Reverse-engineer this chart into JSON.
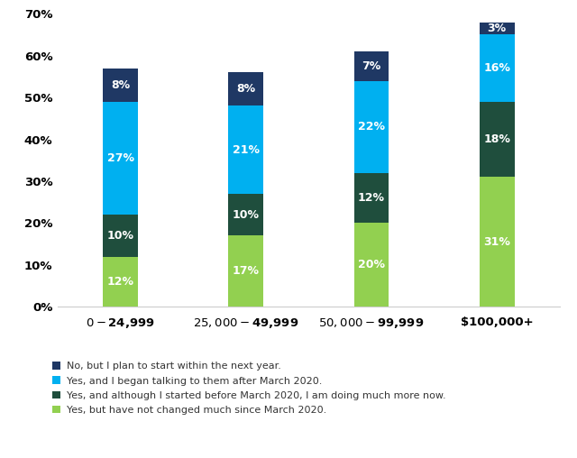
{
  "categories": [
    "$0-$24,999",
    "$25,000-$49,999",
    "$50,000-$99,999",
    "$100,000+"
  ],
  "series": [
    {
      "label": "Yes, but have not changed much since March 2020.",
      "values": [
        12,
        17,
        20,
        31
      ],
      "color": "#92d050"
    },
    {
      "label": "Yes, and although I started before March 2020, I am doing much more now.",
      "values": [
        10,
        10,
        12,
        18
      ],
      "color": "#1f4e3d"
    },
    {
      "label": "Yes, and I began talking to them after March 2020.",
      "values": [
        27,
        21,
        22,
        16
      ],
      "color": "#00b0f0"
    },
    {
      "label": "No, but I plan to start within the next year.",
      "values": [
        8,
        8,
        7,
        3
      ],
      "color": "#1f3864"
    }
  ],
  "ylim": [
    0,
    70
  ],
  "yticks": [
    0,
    10,
    20,
    30,
    40,
    50,
    60,
    70
  ],
  "bar_width": 0.28,
  "figsize": [
    6.4,
    5.08
  ],
  "dpi": 100,
  "background_color": "#ffffff",
  "legend_fontsize": 8.0,
  "tick_fontsize": 9.5,
  "label_fontsize": 9
}
